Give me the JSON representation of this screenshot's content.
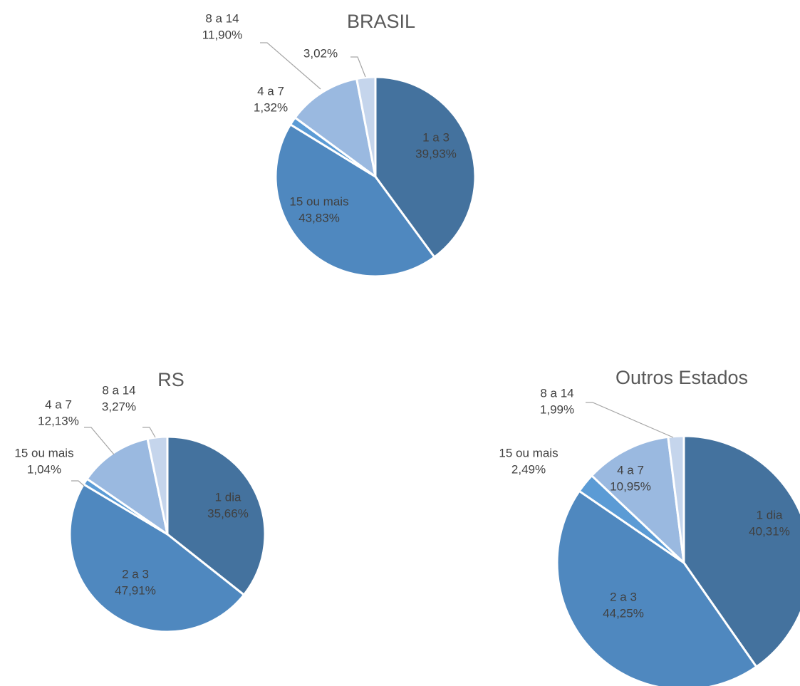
{
  "chart_data": [
    {
      "type": "pie",
      "title": "BRASIL",
      "categories": [
        "1 a 3",
        "15 ou mais",
        "4 a 7",
        "8 a 14",
        null
      ],
      "values": [
        39.93,
        43.83,
        1.32,
        11.9,
        3.02
      ],
      "value_labels": [
        "39,93%",
        "43,83%",
        "1,32%",
        "11,90%",
        "3,02%"
      ],
      "colors": [
        "#44729e",
        "#4f88bf",
        "#5b9bd5",
        "#9ab9e0",
        "#c5d5ec"
      ]
    },
    {
      "type": "pie",
      "title": "RS",
      "categories": [
        "1 dia",
        "2 a 3",
        "15 ou mais",
        "4 a 7",
        "8 a 14"
      ],
      "values": [
        35.66,
        47.91,
        1.04,
        12.13,
        3.27
      ],
      "value_labels": [
        "35,66%",
        "47,91%",
        "1,04%",
        "12,13%",
        "3,27%"
      ],
      "colors": [
        "#44729e",
        "#4f88bf",
        "#5b9bd5",
        "#9ab9e0",
        "#c5d5ec"
      ]
    },
    {
      "type": "pie",
      "title": "Outros Estados",
      "categories": [
        "1 dia",
        "2 a 3",
        "15 ou mais",
        "4 a 7",
        "8 a 14"
      ],
      "values": [
        40.31,
        44.25,
        2.49,
        10.95,
        1.99
      ],
      "value_labels": [
        "40,31%",
        "44,25%",
        "2,49%",
        "10,95%",
        "1,99%"
      ],
      "colors": [
        "#44729e",
        "#4f88bf",
        "#5b9bd5",
        "#9ab9e0",
        "#c5d5ec"
      ]
    }
  ]
}
